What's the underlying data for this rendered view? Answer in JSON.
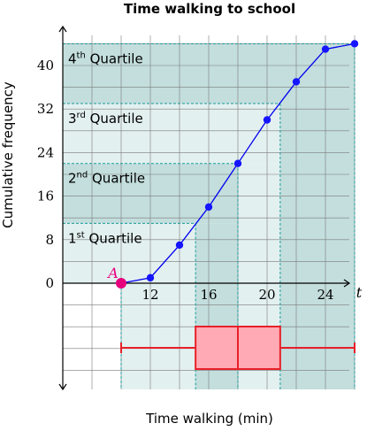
{
  "chart_data": {
    "type": "line",
    "title": "Time walking to school",
    "xlabel": "Time walking (min)",
    "ylabel": "Cumulative frequency",
    "x_axis_var": "t",
    "xlim": [
      6,
      26
    ],
    "ylim": [
      0,
      44
    ],
    "x_ticks": [
      12,
      16,
      20,
      24
    ],
    "y_ticks": [
      0,
      8,
      16,
      24,
      32,
      40
    ],
    "grid": true,
    "series": [
      {
        "points": [
          {
            "x": 10,
            "y": 0
          },
          {
            "x": 12,
            "y": 1
          },
          {
            "x": 14,
            "y": 7
          },
          {
            "x": 16,
            "y": 14
          },
          {
            "x": 18,
            "y": 22
          },
          {
            "x": 20,
            "y": 30
          },
          {
            "x": 22,
            "y": 37
          },
          {
            "x": 24,
            "y": 43
          },
          {
            "x": 26,
            "y": 44
          }
        ]
      }
    ],
    "highlight_point": {
      "label": "A",
      "x": 10,
      "y": 0,
      "color": "#e6007e"
    },
    "quartiles": [
      {
        "num": "1",
        "sup": "st",
        "word": "Quartile",
        "y": 11,
        "x": 15.1
      },
      {
        "num": "2",
        "sup": "nd",
        "word": "Quartile",
        "y": 22,
        "x": 18
      },
      {
        "num": "3",
        "sup": "rd",
        "word": "Quartile",
        "y": 33,
        "x": 20.9
      },
      {
        "num": "4",
        "sup": "th",
        "word": "Quartile",
        "y": 44,
        "x": 26
      }
    ],
    "boxplot": {
      "min": 10,
      "q1": 15.1,
      "median": 18,
      "q3": 20.9,
      "max": 26
    },
    "colors": {
      "line": "#0000ee",
      "points": "#1515ff",
      "highlight": "#e6007e",
      "box_fill": "#ffaab4",
      "box_stroke": "#e8202a",
      "band_light": "#e3f0f0",
      "band_dark": "#c3dedd",
      "dashed": "#1a9c9c",
      "grid": "#7a7a7a"
    }
  }
}
